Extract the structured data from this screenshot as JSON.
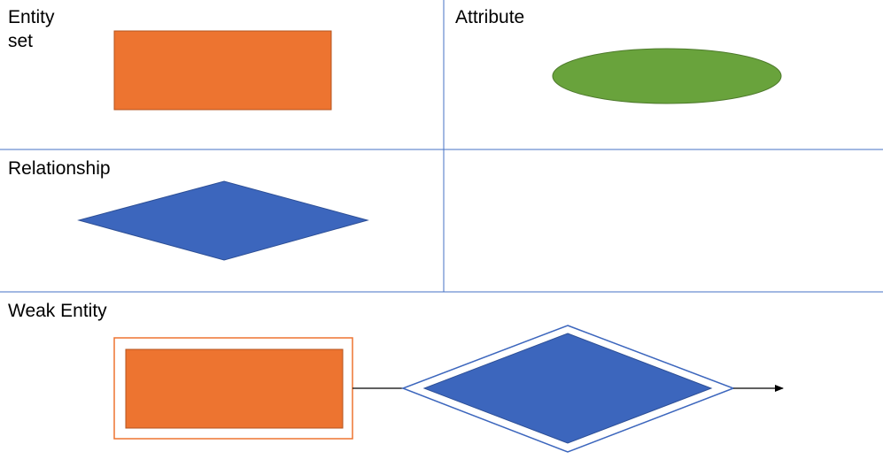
{
  "labels": {
    "entity_set": "Entity\nset",
    "attribute": "Attribute",
    "relationship": "Relationship",
    "weak_entity": "Weak Entity"
  },
  "colors": {
    "entity_fill": "#ED7430",
    "entity_stroke": "#B4541F",
    "attribute_fill": "#69A33C",
    "attribute_stroke": "#4E7A2C",
    "relationship_fill": "#3C66BD",
    "relationship_stroke": "#2D4F96",
    "grid_line": "#4472C4",
    "arrow": "#000000"
  }
}
